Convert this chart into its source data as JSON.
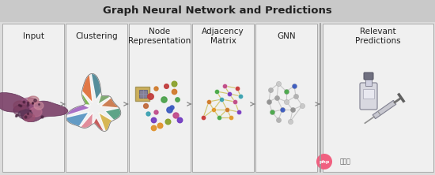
{
  "title": "Graph Neural Network and Predictions",
  "title_bg": "#c9c9c9",
  "main_bg": "#dcdcdc",
  "box_bg": "#f0f0f0",
  "arrow_color": "#888888",
  "text_color": "#222222",
  "labels": [
    "Input",
    "Clustering",
    "Node\nRepresentation",
    "Adjacency\nMatrix",
    "GNN",
    "Relevant\nPredictions"
  ],
  "figsize": [
    5.5,
    2.22
  ],
  "dpi": 100,
  "title_fontsize": 9.5,
  "label_fontsize": 7.5
}
